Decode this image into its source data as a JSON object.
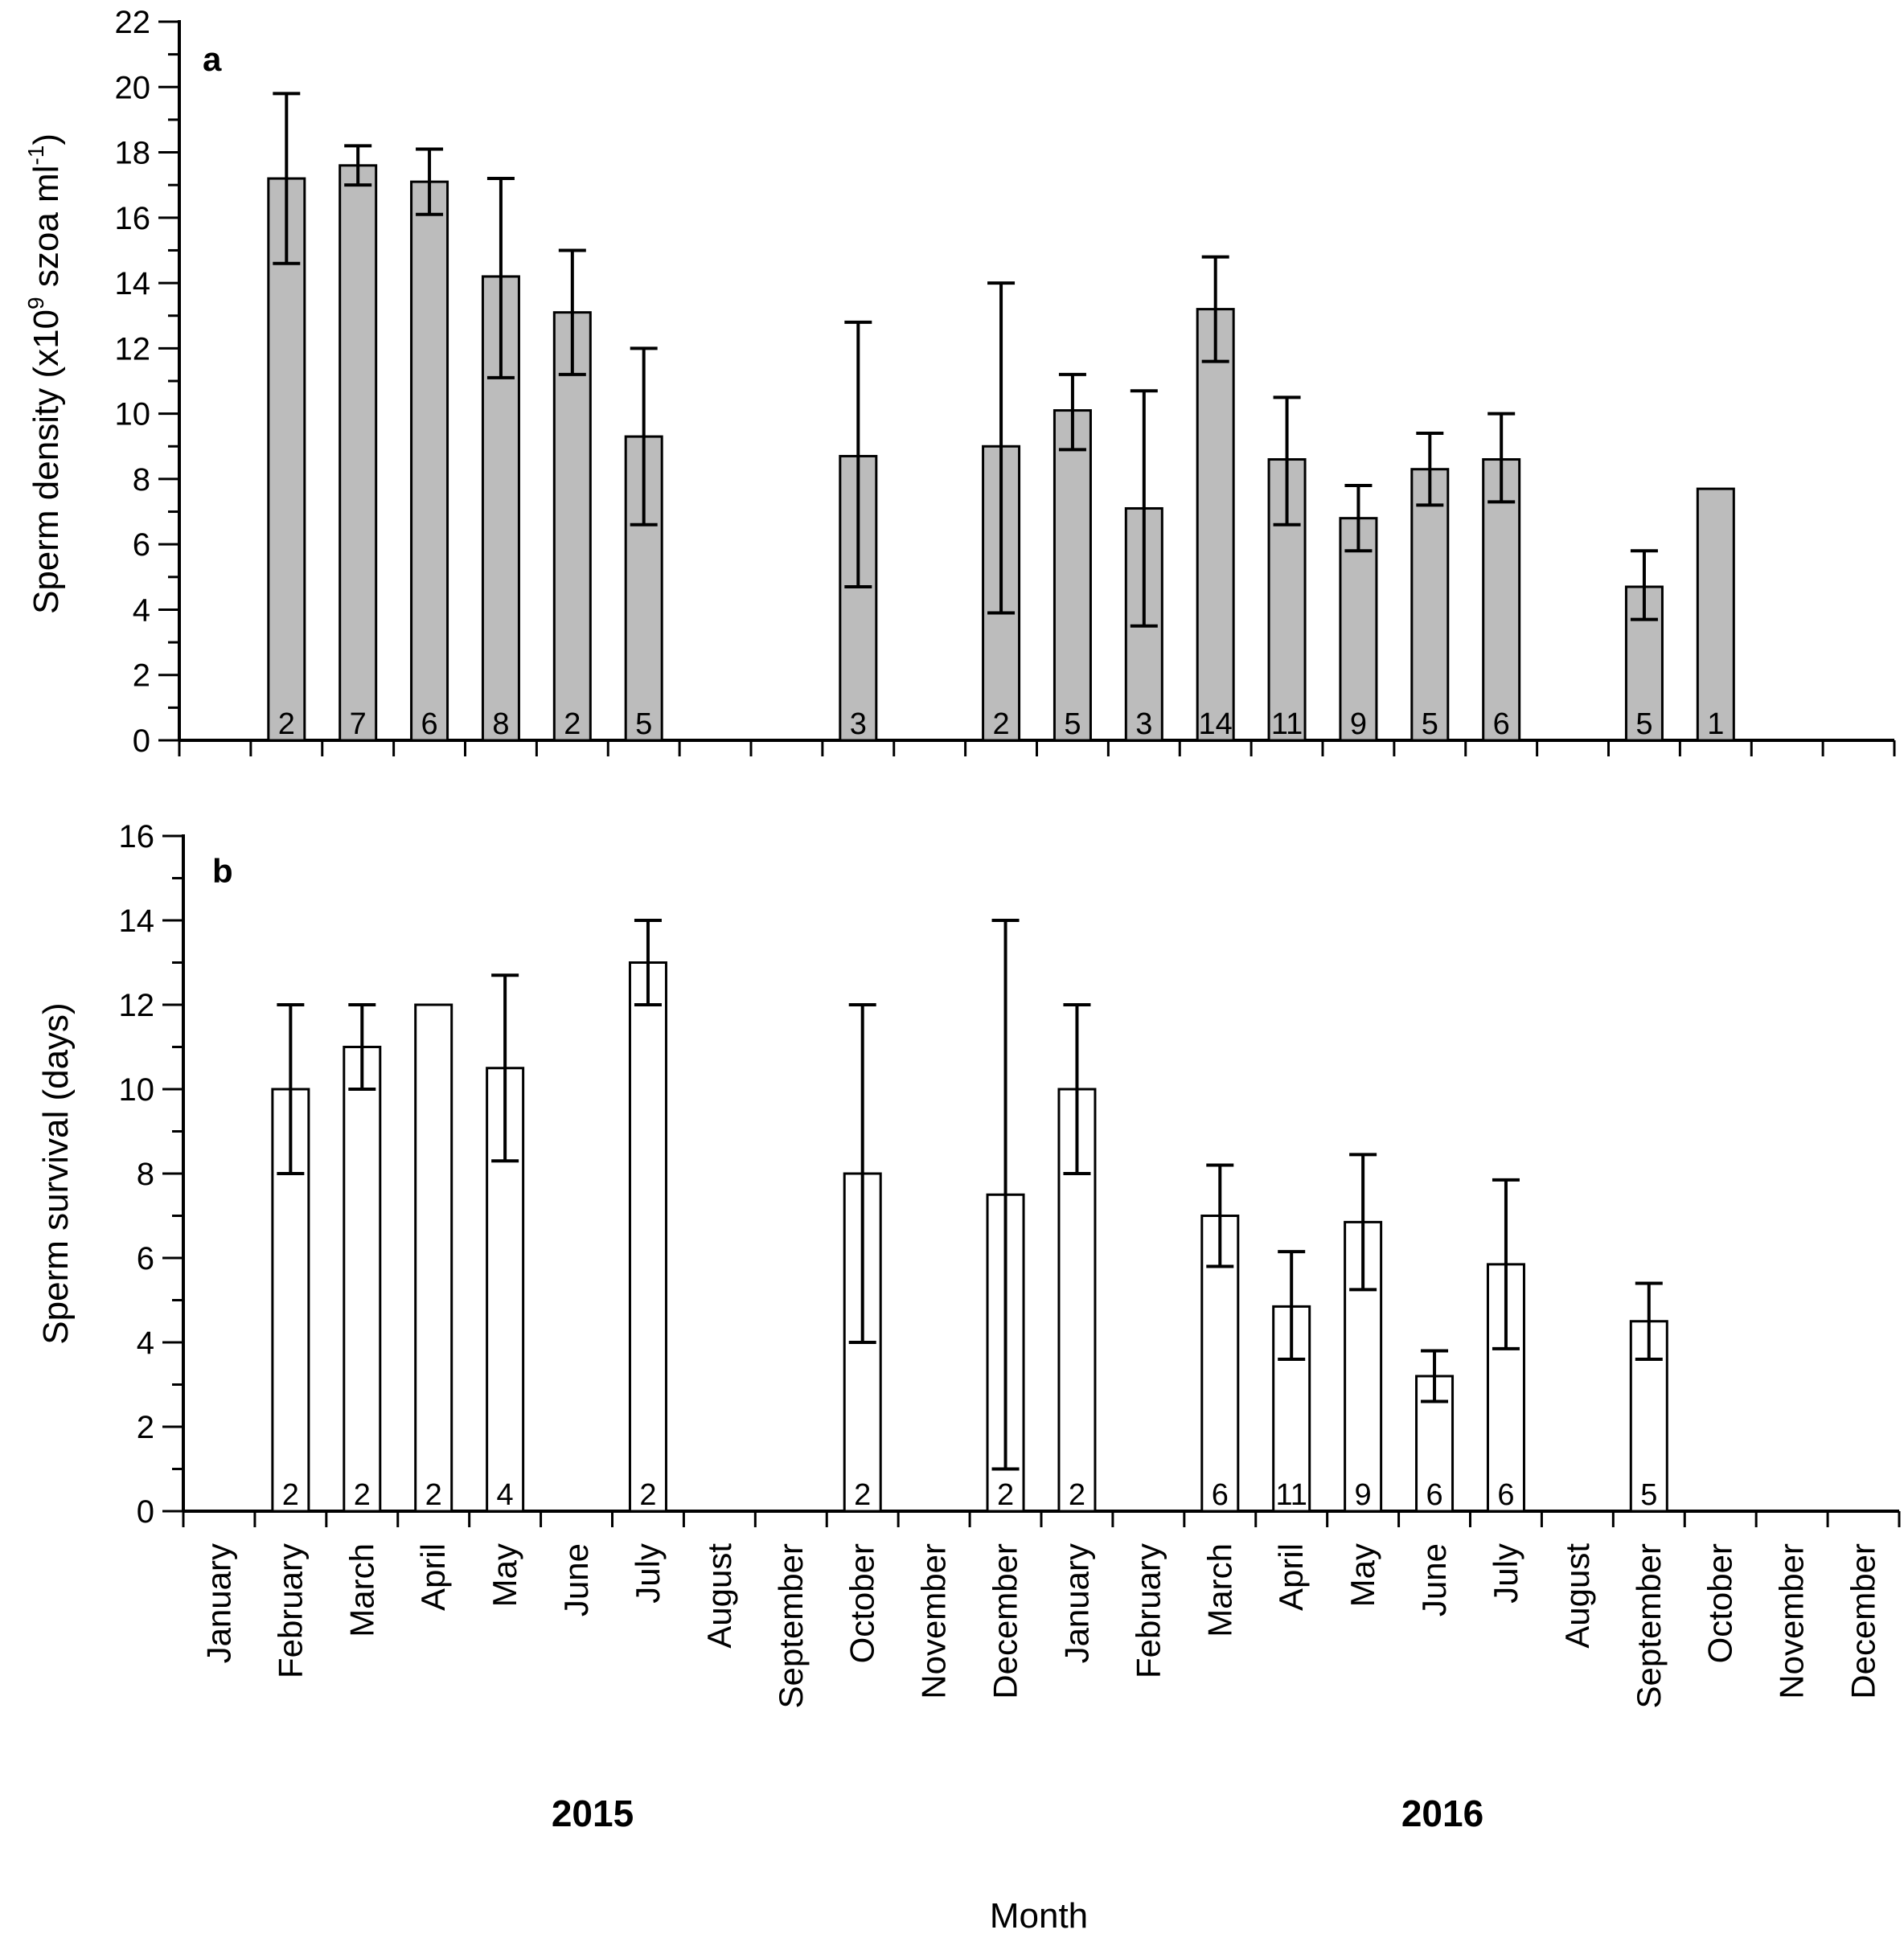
{
  "chart_data": {
    "type": "bar",
    "months": [
      "January",
      "February",
      "March",
      "April",
      "May",
      "June",
      "July",
      "August",
      "September",
      "October",
      "November",
      "December",
      "January",
      "February",
      "March",
      "April",
      "May",
      "June",
      "July",
      "August",
      "September",
      "October",
      "November",
      "December"
    ],
    "years": [
      "2015",
      "2016"
    ],
    "xlabel": "Month",
    "colors": {
      "panel_a_fill": "#bcbcbc",
      "panel_b_fill": "#ffffff",
      "stroke": "#000000"
    },
    "panels": [
      {
        "letter": "a",
        "ylabel": "Sperm density (x10",
        "ylabel_sup": "9",
        "ylabel_mid": " szoa ml",
        "ylabel_sup2": "-1",
        "ylabel_end": ")",
        "ylim": [
          0,
          22
        ],
        "major_ticks": [
          "0",
          "2",
          "4",
          "6",
          "8",
          "10",
          "12",
          "14",
          "16",
          "18",
          "20",
          "22"
        ],
        "bars": [
          {
            "month_index": 1,
            "value": 17.2,
            "err_low": 14.6,
            "err_high": 19.8,
            "n": "2"
          },
          {
            "month_index": 2,
            "value": 17.6,
            "err_low": 17.0,
            "err_high": 18.2,
            "n": "7"
          },
          {
            "month_index": 3,
            "value": 17.1,
            "err_low": 16.1,
            "err_high": 18.1,
            "n": "6"
          },
          {
            "month_index": 4,
            "value": 14.2,
            "err_low": 11.1,
            "err_high": 17.2,
            "n": "8"
          },
          {
            "month_index": 5,
            "value": 13.1,
            "err_low": 11.2,
            "err_high": 15.0,
            "n": "2"
          },
          {
            "month_index": 6,
            "value": 9.3,
            "err_low": 6.6,
            "err_high": 12.0,
            "n": "5"
          },
          {
            "month_index": 9,
            "value": 8.7,
            "err_low": 4.7,
            "err_high": 12.8,
            "n": "3"
          },
          {
            "month_index": 11,
            "value": 9.0,
            "err_low": 3.9,
            "err_high": 14.0,
            "n": "2"
          },
          {
            "month_index": 12,
            "value": 10.1,
            "err_low": 8.9,
            "err_high": 11.2,
            "n": "5"
          },
          {
            "month_index": 13,
            "value": 7.1,
            "err_low": 3.5,
            "err_high": 10.7,
            "n": "3"
          },
          {
            "month_index": 14,
            "value": 13.2,
            "err_low": 11.6,
            "err_high": 14.8,
            "n": "14"
          },
          {
            "month_index": 15,
            "value": 8.6,
            "err_low": 6.6,
            "err_high": 10.5,
            "n": "11"
          },
          {
            "month_index": 16,
            "value": 6.8,
            "err_low": 5.8,
            "err_high": 7.8,
            "n": "9"
          },
          {
            "month_index": 17,
            "value": 8.3,
            "err_low": 7.2,
            "err_high": 9.4,
            "n": "5"
          },
          {
            "month_index": 18,
            "value": 8.6,
            "err_low": 7.3,
            "err_high": 10.0,
            "n": "6"
          },
          {
            "month_index": 20,
            "value": 4.7,
            "err_low": 3.7,
            "err_high": 5.8,
            "n": "5"
          },
          {
            "month_index": 21,
            "value": 7.7,
            "n": "1"
          }
        ]
      },
      {
        "letter": "b",
        "ylabel": "Sperm survival (days)",
        "ylim": [
          0,
          16
        ],
        "major_ticks": [
          "0",
          "2",
          "4",
          "6",
          "8",
          "10",
          "12",
          "14",
          "16"
        ],
        "bars": [
          {
            "month_index": 1,
            "value": 10.0,
            "err_low": 8.0,
            "err_high": 12.0,
            "n": "2"
          },
          {
            "month_index": 2,
            "value": 11.0,
            "err_low": 10.0,
            "err_high": 12.0,
            "n": "2"
          },
          {
            "month_index": 3,
            "value": 12.0,
            "n": "2"
          },
          {
            "month_index": 4,
            "value": 10.5,
            "err_low": 8.3,
            "err_high": 12.7,
            "n": "4"
          },
          {
            "month_index": 6,
            "value": 13.0,
            "err_low": 12.0,
            "err_high": 14.0,
            "n": "2"
          },
          {
            "month_index": 9,
            "value": 8.0,
            "err_low": 4.0,
            "err_high": 12.0,
            "n": "2"
          },
          {
            "month_index": 11,
            "value": 7.5,
            "err_low": 1.0,
            "err_high": 14.0,
            "n": "2"
          },
          {
            "month_index": 12,
            "value": 10.0,
            "err_low": 8.0,
            "err_high": 12.0,
            "n": "2"
          },
          {
            "month_index": 14,
            "value": 7.0,
            "err_low": 5.8,
            "err_high": 8.2,
            "n": "6"
          },
          {
            "month_index": 15,
            "value": 4.85,
            "err_low": 3.6,
            "err_high": 6.15,
            "n": "11"
          },
          {
            "month_index": 16,
            "value": 6.85,
            "err_low": 5.25,
            "err_high": 8.45,
            "n": "9"
          },
          {
            "month_index": 17,
            "value": 3.2,
            "err_low": 2.6,
            "err_high": 3.8,
            "n": "6"
          },
          {
            "month_index": 18,
            "value": 5.85,
            "err_low": 3.85,
            "err_high": 7.85,
            "n": "6"
          },
          {
            "month_index": 20,
            "value": 4.5,
            "err_low": 3.6,
            "err_high": 5.4,
            "n": "5"
          }
        ]
      }
    ]
  }
}
